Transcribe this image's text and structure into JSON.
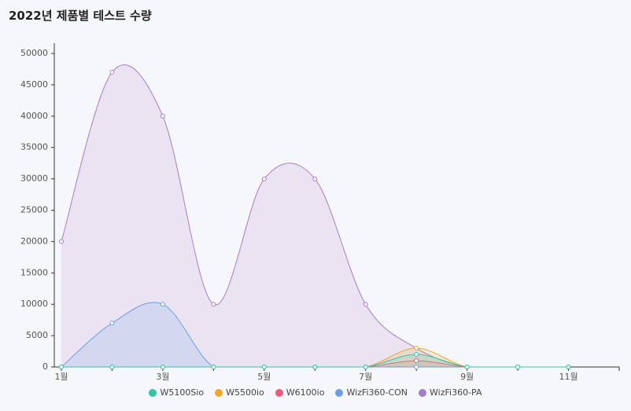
{
  "chart_data": {
    "type": "area",
    "title": "2022년 제품별 테스트 수량",
    "categories": [
      "1월",
      null,
      "3월",
      null,
      "5월",
      null,
      "7월",
      null,
      "9월",
      null,
      "11월",
      null
    ],
    "smooth": true,
    "legend": "bottom",
    "series": [
      {
        "name": "W5100Sio",
        "color": "#2bc7a4",
        "values": [
          0,
          0,
          0,
          0,
          0,
          0,
          0,
          2000,
          0,
          0,
          0,
          null
        ]
      },
      {
        "name": "W5500io",
        "color": "#f5a623",
        "values": [
          0,
          0,
          0,
          0,
          0,
          0,
          0,
          3000,
          0,
          0,
          0,
          null
        ]
      },
      {
        "name": "W6100io",
        "color": "#f2587e",
        "values": [
          0,
          0,
          0,
          0,
          0,
          0,
          0,
          1000,
          0,
          0,
          0,
          null
        ]
      },
      {
        "name": "WizFi360-CON",
        "color": "#6a9ee6",
        "values": [
          0,
          7000,
          10000,
          0,
          0,
          0,
          0,
          0,
          0,
          0,
          0,
          null
        ]
      },
      {
        "name": "WizFi360-PA",
        "color": "#a77cc8",
        "values": [
          20000,
          47000,
          40000,
          10000,
          30000,
          30000,
          10000,
          3000,
          0,
          0,
          0,
          null
        ]
      }
    ],
    "ylim": [
      0,
      50000
    ],
    "yticks": [
      0,
      5000,
      10000,
      15000,
      20000,
      25000,
      30000,
      35000,
      40000,
      45000,
      50000
    ]
  }
}
